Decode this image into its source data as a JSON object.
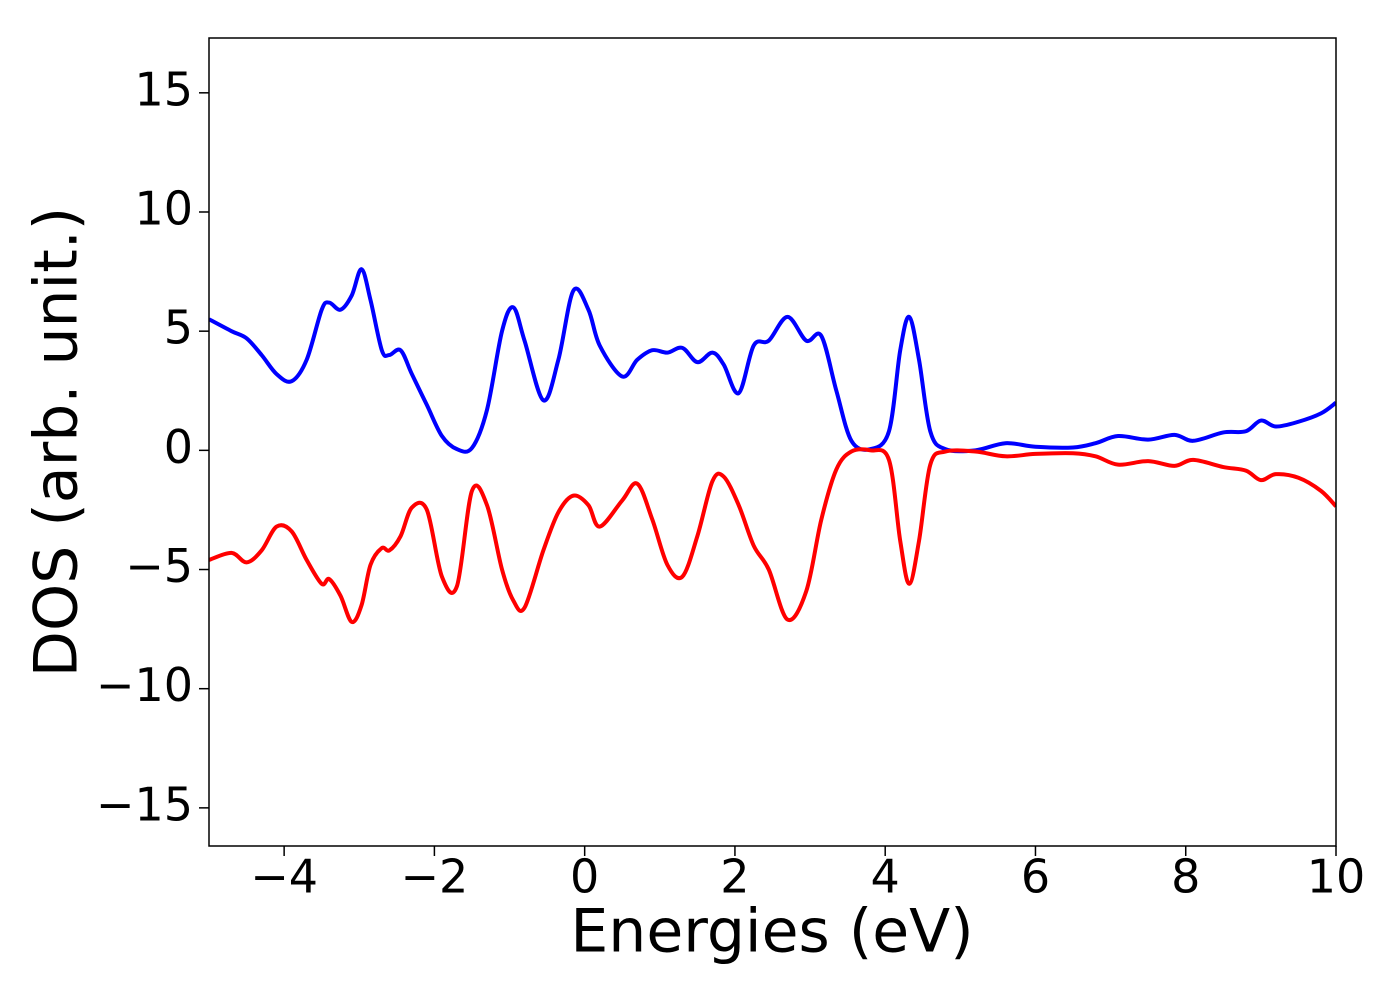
{
  "chart_data": {
    "type": "line",
    "x_label": "Energies (eV)",
    "y_label": "DOS (arb. unit.)",
    "x": [
      -5,
      -4.7,
      -4.5,
      -4.3,
      -4.1,
      -3.9,
      -3.7,
      -3.5,
      -3.4,
      -3.25,
      -3.1,
      -2.97,
      -2.85,
      -2.7,
      -2.6,
      -2.45,
      -2.3,
      -2.1,
      -1.9,
      -1.7,
      -1.5,
      -1.3,
      -1.1,
      -0.95,
      -0.8,
      -0.55,
      -0.35,
      -0.15,
      0.05,
      0.2,
      0.5,
      0.7,
      0.9,
      1.1,
      1.3,
      1.5,
      1.7,
      1.85,
      2.05,
      2.25,
      2.45,
      2.7,
      2.95,
      3.15,
      3.35,
      3.55,
      3.8,
      4.05,
      4.2,
      4.32,
      4.45,
      4.6,
      4.8,
      5.2,
      5.6,
      6.0,
      6.5,
      6.8,
      7.1,
      7.5,
      7.85,
      8.1,
      8.5,
      8.8,
      9.0,
      9.2,
      9.5,
      9.8,
      10
    ],
    "series": [
      {
        "color": "#0000ff",
        "values": [
          5.5,
          5.0,
          4.7,
          4.0,
          3.2,
          2.9,
          3.8,
          5.9,
          6.2,
          5.9,
          6.5,
          7.6,
          6.3,
          4.2,
          4.0,
          4.2,
          3.2,
          1.9,
          0.6,
          0.05,
          0.1,
          1.7,
          5.0,
          6.0,
          4.6,
          2.1,
          3.8,
          6.7,
          5.9,
          4.4,
          3.1,
          3.8,
          4.2,
          4.1,
          4.3,
          3.7,
          4.1,
          3.6,
          2.4,
          4.4,
          4.6,
          5.6,
          4.6,
          4.8,
          2.5,
          0.4,
          0.05,
          0.8,
          4.2,
          5.6,
          3.8,
          0.8,
          0.05,
          0.0,
          0.3,
          0.15,
          0.12,
          0.3,
          0.6,
          0.45,
          0.65,
          0.4,
          0.75,
          0.8,
          1.25,
          1.0,
          1.2,
          1.55,
          2.0
        ]
      },
      {
        "color": "#ff0000",
        "values": [
          -4.6,
          -4.3,
          -4.7,
          -4.2,
          -3.2,
          -3.4,
          -4.6,
          -5.6,
          -5.4,
          -6.1,
          -7.2,
          -6.5,
          -4.8,
          -4.1,
          -4.2,
          -3.6,
          -2.4,
          -2.5,
          -5.3,
          -5.7,
          -1.7,
          -2.3,
          -5.0,
          -6.3,
          -6.6,
          -4.2,
          -2.6,
          -1.9,
          -2.3,
          -3.2,
          -2.1,
          -1.4,
          -2.9,
          -4.8,
          -5.3,
          -3.6,
          -1.3,
          -1.1,
          -2.3,
          -4.0,
          -5.0,
          -7.1,
          -5.9,
          -2.9,
          -0.8,
          -0.05,
          0,
          -0.4,
          -3.8,
          -5.6,
          -3.8,
          -0.6,
          -0.05,
          -0.05,
          -0.25,
          -0.15,
          -0.12,
          -0.25,
          -0.6,
          -0.45,
          -0.65,
          -0.4,
          -0.7,
          -0.85,
          -1.25,
          -1.0,
          -1.15,
          -1.7,
          -2.35
        ]
      }
    ],
    "xlim": [
      -5,
      10
    ],
    "ylim": [
      -16.6,
      17.3
    ],
    "xticks": [
      {
        "value": -4,
        "label": "−4"
      },
      {
        "value": -2,
        "label": "−2"
      },
      0,
      2,
      4,
      6,
      8,
      10
    ],
    "yticks": [
      {
        "value": -15,
        "label": "−15"
      },
      {
        "value": -10,
        "label": "−10"
      },
      {
        "value": -5,
        "label": "−5"
      },
      0,
      5,
      10,
      15
    ],
    "grid": false
  }
}
